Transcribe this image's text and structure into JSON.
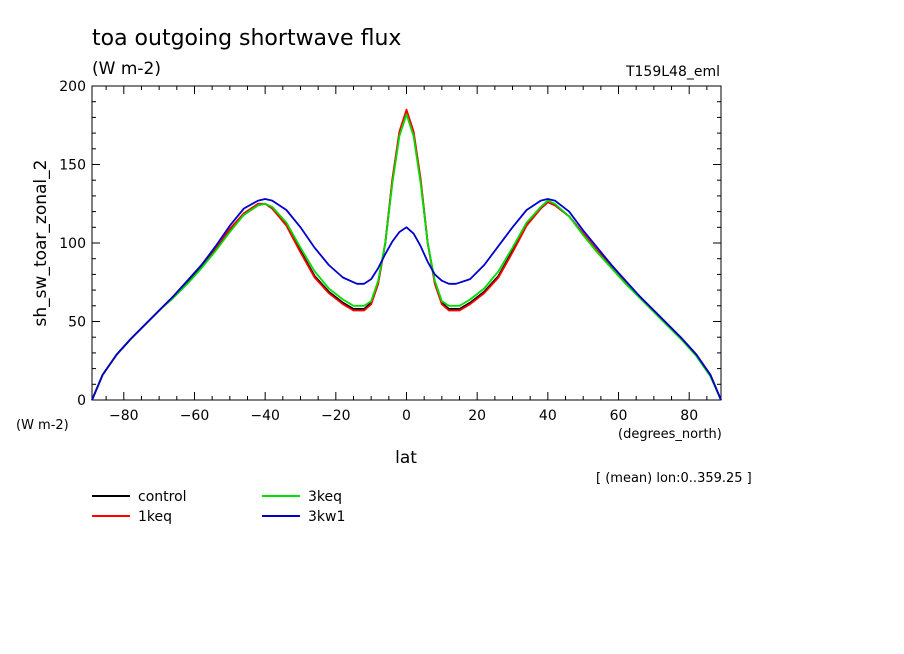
{
  "header": {
    "title": "toa outgoing shortwave flux",
    "units": "(W m-2)",
    "run_id": "T159L48_eml"
  },
  "chart_data": {
    "type": "line",
    "title": "toa outgoing shortwave flux",
    "subtitle": "(W m-2)",
    "xlabel": "lat",
    "x_units": "(degrees_north)",
    "ylabel": "sh_sw_toar_zonal_2",
    "y_units": "(W m-2)",
    "annotation": "[ (mean) lon:0..359.25 ]",
    "xlim": [
      -89,
      89
    ],
    "ylim": [
      0,
      200
    ],
    "xticks": [
      -80,
      -60,
      -40,
      -20,
      0,
      20,
      40,
      60,
      80
    ],
    "yticks": [
      0,
      50,
      100,
      150,
      200
    ],
    "grid": false,
    "legend_position": "bottom-left",
    "series": [
      {
        "name": "control",
        "color": "#000000",
        "x": [
          -89,
          -86,
          -82,
          -78,
          -74,
          -70,
          -66,
          -62,
          -58,
          -54,
          -50,
          -46,
          -42,
          -40,
          -38,
          -34,
          -30,
          -26,
          -22,
          -18,
          -15,
          -12,
          -10,
          -8,
          -6,
          -4,
          -2,
          0,
          2,
          4,
          6,
          8,
          10,
          12,
          15,
          18,
          22,
          26,
          30,
          34,
          38,
          40,
          42,
          46,
          50,
          54,
          58,
          62,
          66,
          70,
          74,
          78,
          82,
          86,
          89
        ],
        "y": [
          0,
          16,
          29,
          39,
          48,
          57,
          66,
          75,
          85,
          96,
          108,
          118,
          124,
          125,
          122,
          112,
          95,
          79,
          69,
          62,
          58,
          58,
          62,
          75,
          100,
          140,
          170,
          184,
          170,
          140,
          100,
          75,
          62,
          58,
          58,
          62,
          69,
          79,
          95,
          112,
          122,
          126,
          124,
          117,
          106,
          95,
          85,
          75,
          66,
          57,
          48,
          39,
          29,
          16,
          0
        ]
      },
      {
        "name": "1keq",
        "color": "#ff0000",
        "x": [
          -89,
          -86,
          -82,
          -78,
          -74,
          -70,
          -66,
          -62,
          -58,
          -54,
          -50,
          -46,
          -42,
          -40,
          -38,
          -34,
          -30,
          -26,
          -22,
          -18,
          -15,
          -12,
          -10,
          -8,
          -6,
          -4,
          -2,
          0,
          2,
          4,
          6,
          8,
          10,
          12,
          15,
          18,
          22,
          26,
          30,
          34,
          38,
          40,
          42,
          46,
          50,
          54,
          58,
          62,
          66,
          70,
          74,
          78,
          82,
          86,
          89
        ],
        "y": [
          0,
          16,
          29,
          39,
          48,
          57,
          66,
          76,
          86,
          97,
          109,
          119,
          125,
          125,
          122,
          111,
          94,
          78,
          68,
          61,
          57,
          57,
          61,
          74,
          100,
          141,
          171,
          185,
          171,
          141,
          100,
          74,
          61,
          57,
          57,
          61,
          68,
          78,
          94,
          111,
          122,
          126,
          124,
          117,
          106,
          95,
          85,
          75,
          66,
          57,
          48,
          39,
          29,
          16,
          0
        ]
      },
      {
        "name": "3keq",
        "color": "#00dd00",
        "x": [
          -89,
          -86,
          -82,
          -78,
          -74,
          -70,
          -66,
          -62,
          -58,
          -54,
          -50,
          -46,
          -42,
          -40,
          -38,
          -34,
          -30,
          -26,
          -22,
          -18,
          -15,
          -12,
          -10,
          -8,
          -6,
          -4,
          -2,
          0,
          2,
          4,
          6,
          8,
          10,
          12,
          15,
          18,
          22,
          26,
          30,
          34,
          38,
          40,
          42,
          46,
          50,
          54,
          58,
          62,
          66,
          70,
          74,
          78,
          82,
          86,
          89
        ],
        "y": [
          0,
          16,
          29,
          39,
          48,
          57,
          65,
          74,
          84,
          95,
          107,
          118,
          124,
          125,
          123,
          113,
          97,
          82,
          71,
          64,
          60,
          60,
          63,
          76,
          100,
          138,
          168,
          182,
          168,
          138,
          100,
          76,
          63,
          60,
          60,
          64,
          71,
          82,
          97,
          113,
          123,
          127,
          125,
          117,
          105,
          94,
          84,
          74,
          65,
          56,
          47,
          38,
          28,
          15,
          0
        ]
      },
      {
        "name": "3kw1",
        "color": "#0000cc",
        "x": [
          -89,
          -86,
          -82,
          -78,
          -74,
          -70,
          -66,
          -62,
          -58,
          -54,
          -50,
          -46,
          -42,
          -40,
          -38,
          -34,
          -30,
          -26,
          -22,
          -18,
          -14,
          -12,
          -10,
          -8,
          -6,
          -4,
          -2,
          0,
          2,
          4,
          6,
          8,
          10,
          12,
          14,
          18,
          22,
          26,
          30,
          34,
          38,
          40,
          42,
          46,
          50,
          54,
          58,
          62,
          66,
          70,
          74,
          78,
          82,
          86,
          89
        ],
        "y": [
          0,
          16,
          29,
          39,
          48,
          57,
          66,
          76,
          86,
          98,
          111,
          122,
          127,
          128,
          127,
          121,
          110,
          97,
          86,
          78,
          74,
          74,
          77,
          84,
          93,
          101,
          107,
          110,
          106,
          98,
          88,
          80,
          76,
          74,
          74,
          77,
          86,
          98,
          110,
          121,
          127,
          128,
          127,
          120,
          108,
          97,
          86,
          76,
          66,
          57,
          48,
          39,
          29,
          16,
          0
        ]
      }
    ]
  }
}
